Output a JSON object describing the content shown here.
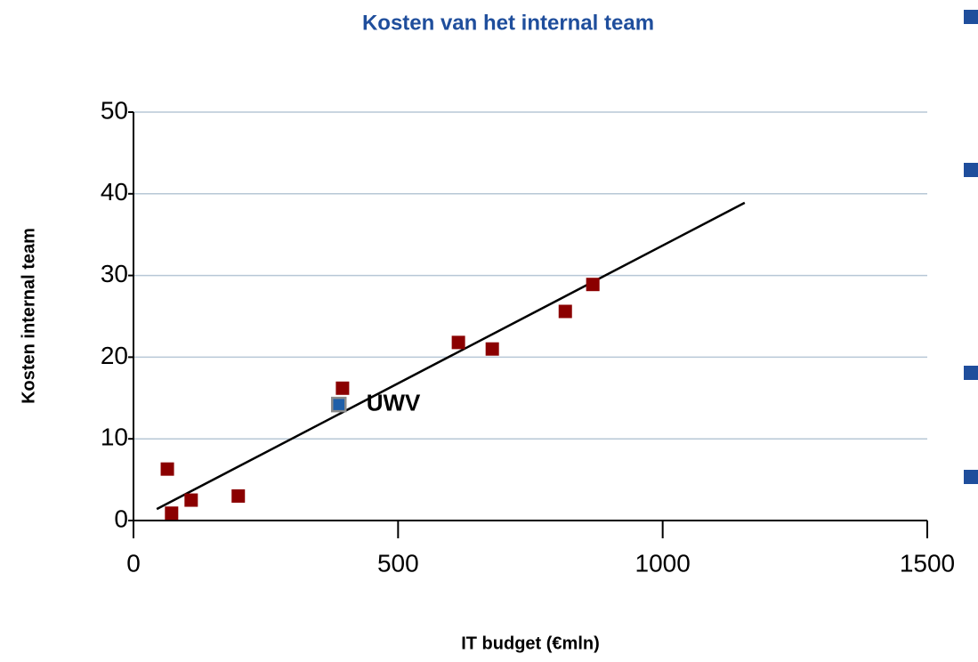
{
  "chart_data": {
    "type": "scatter",
    "title": "Kosten van het internal team",
    "xlabel": "IT budget (€mln)",
    "ylabel": "Kosten internal team",
    "xlim": [
      0,
      1500
    ],
    "ylim": [
      0,
      50
    ],
    "xticks": [
      0,
      500,
      1000,
      1500
    ],
    "yticks": [
      0,
      10,
      20,
      30,
      40,
      50
    ],
    "grid": true,
    "series": [
      {
        "color": "#8b0000",
        "x": [
          64,
          72,
          109,
          198,
          395,
          614,
          678,
          816,
          868
        ],
        "values": [
          6.3,
          0.9,
          2.5,
          3.0,
          16.2,
          21.8,
          21.0,
          25.6,
          28.9
        ]
      },
      {
        "name": "UWV",
        "color": "#1f5fa8",
        "x": [
          388
        ],
        "values": [
          14.2
        ]
      }
    ],
    "trendline": {
      "x": [
        44,
        1155
      ],
      "values": [
        1.4,
        38.9
      ]
    }
  }
}
